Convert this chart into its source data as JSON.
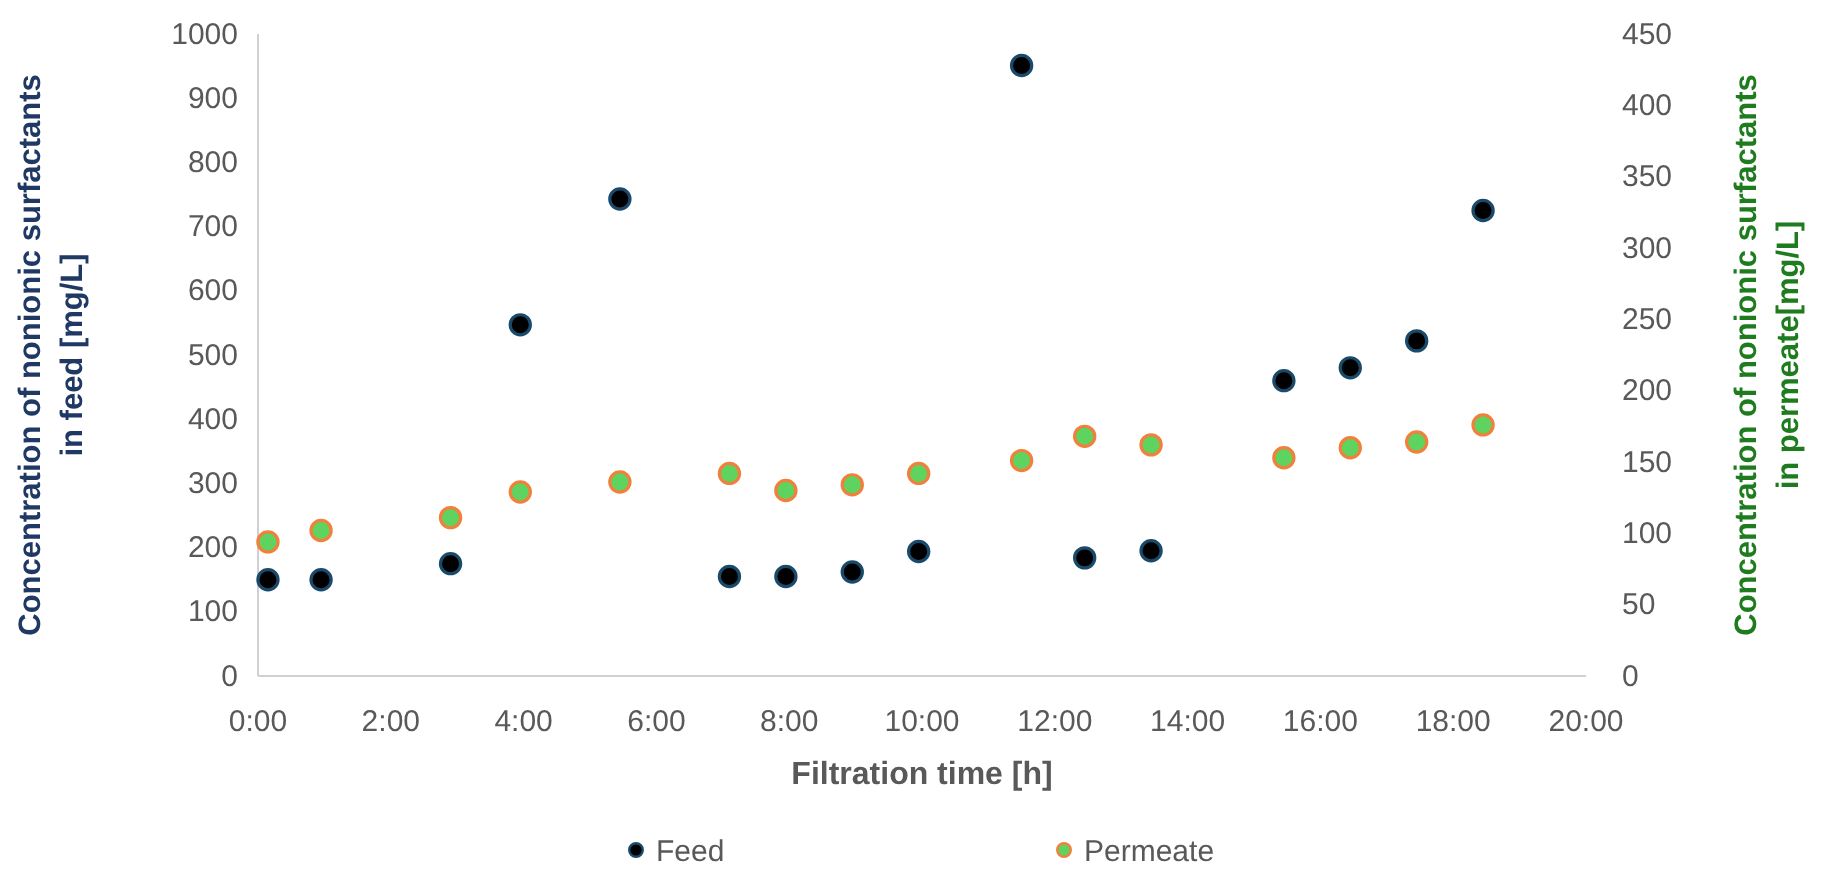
{
  "chart_data": {
    "type": "scatter",
    "xlabel": "Filtration time [h]",
    "ylabel": "Concentration of nonionic surfactants\nin feed [mg/L]",
    "y2label": "Concentration of nonionic surfactants\nin permeate[mg/L]",
    "xlim": [
      0,
      20
    ],
    "xticks": [
      {
        "value": 0,
        "label": "0:00"
      },
      {
        "value": 2,
        "label": "2:00"
      },
      {
        "value": 4,
        "label": "4:00"
      },
      {
        "value": 6,
        "label": "6:00"
      },
      {
        "value": 8,
        "label": "8:00"
      },
      {
        "value": 10,
        "label": "10:00"
      },
      {
        "value": 12,
        "label": "12:00"
      },
      {
        "value": 14,
        "label": "14:00"
      },
      {
        "value": 16,
        "label": "16:00"
      },
      {
        "value": 18,
        "label": "18:00"
      },
      {
        "value": 20,
        "label": "20:00"
      }
    ],
    "ylim": [
      0,
      1000
    ],
    "yticks": [
      0,
      100,
      200,
      300,
      400,
      500,
      600,
      700,
      800,
      900,
      1000
    ],
    "y2lim": [
      0,
      450
    ],
    "y2ticks": [
      0,
      50,
      100,
      150,
      200,
      250,
      300,
      350,
      400,
      450
    ],
    "x": [
      0.15,
      0.95,
      2.9,
      3.95,
      5.45,
      7.1,
      7.95,
      8.95,
      9.95,
      11.5,
      12.45,
      13.45,
      15.45,
      16.45,
      17.45,
      18.45
    ],
    "series": [
      {
        "name": "Feed",
        "color": "#000000",
        "values": [
          150,
          150,
          175,
          547,
          743,
          155,
          155,
          162,
          194,
          951,
          184,
          195,
          460,
          480,
          522,
          725
        ]
      },
      {
        "name": "Permeate",
        "color": "#5fd35f",
        "axis": "y2",
        "values": [
          94,
          102,
          111,
          129,
          136,
          142,
          130,
          134,
          142,
          151,
          168,
          162,
          153,
          160,
          164,
          176
        ]
      }
    ],
    "marker": "circle",
    "grid": false,
    "legend": "bottom"
  }
}
